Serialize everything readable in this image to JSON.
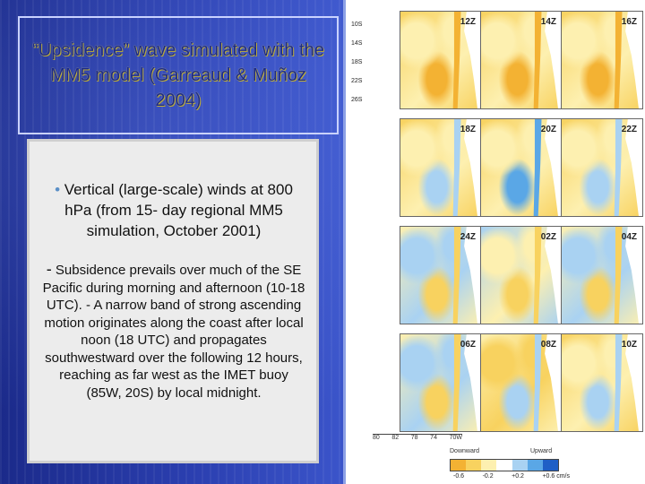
{
  "title": "“Upsidence” wave simulated with the MM5 model (Garreaud & Muñoz 2004)",
  "text_panel": {
    "bullet": "Vertical (large-scale) winds at 800 hPa (from 15- day regional MM5 simulation, October 2001)",
    "sub_points": "Subsidence prevails over much of the SE Pacific during morning and afternoon (10-18 UTC). - A narrow band of strong ascending motion originates along the coast after local noon (18 UTC) and propagates southwestward over the following 12 hours, reaching as far west as the IMET buoy (85W, 20S) by local midnight."
  },
  "figure": {
    "lat_labels": [
      "10S",
      "14S",
      "18S",
      "22S",
      "26S"
    ],
    "times": [
      "12Z",
      "14Z",
      "16Z",
      "18Z",
      "20Z",
      "22Z",
      "24Z",
      "02Z",
      "04Z",
      "06Z",
      "08Z",
      "10Z"
    ],
    "lon_labels": [
      "80",
      "82",
      "78",
      "74",
      "70W"
    ],
    "colorbar": {
      "downward_label": "Downward",
      "upward_label": "Upward",
      "ticks": [
        "-0.6",
        "-0.2",
        "+0.2",
        "+0.6 cm/s"
      ]
    },
    "colors": {
      "strong_down": "#f3b233",
      "down": "#f8d25f",
      "weak": "#fdf0b0",
      "up": "#a9d2f2",
      "strong_up": "#5aa7e6",
      "very_up": "#1f5fc6"
    }
  }
}
